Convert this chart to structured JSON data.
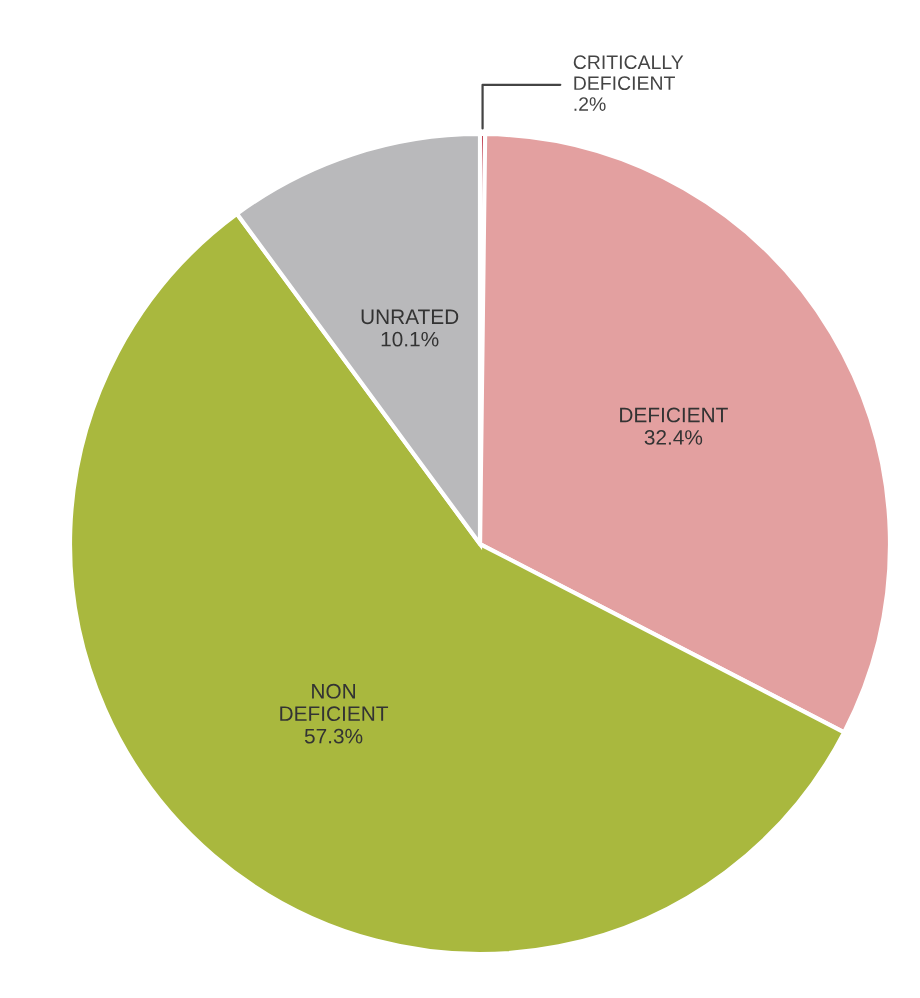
{
  "chart_data": {
    "type": "pie",
    "categories": [
      "CRITICALLY DEFICIENT",
      "DEFICIENT",
      "NON DEFICIENT",
      "UNRATED"
    ],
    "values": [
      0.2,
      32.4,
      57.3,
      10.1
    ],
    "value_labels": [
      ".2%",
      "32.4%",
      "57.3%",
      "10.1%"
    ],
    "colors": [
      "#b8283a",
      "#e3a0a0",
      "#a9b83e",
      "#b9b9bb"
    ],
    "legend": false
  }
}
